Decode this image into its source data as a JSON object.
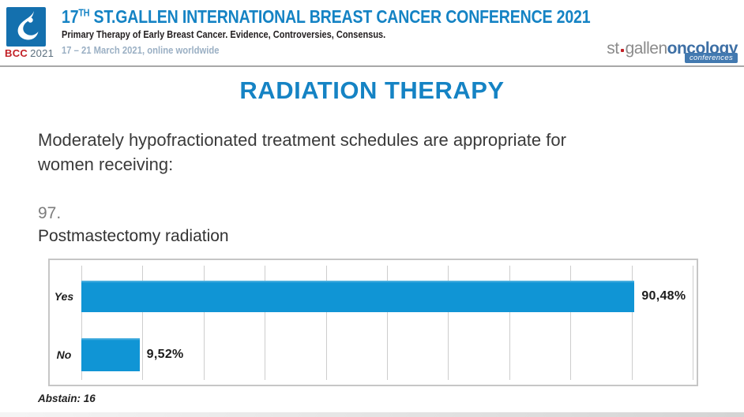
{
  "header": {
    "logo_caption": {
      "bcc": "BCC",
      "year": "2021"
    },
    "title_prefix": "17",
    "title_superscript": "TH",
    "title_rest": "ST.GALLEN INTERNATIONAL BREAST CANCER CONFERENCE 2021",
    "subtitle": "Primary Therapy of Early Breast Cancer. Evidence, Controversies, Consensus.",
    "dates": "17 – 21 March 2021, online worldwide",
    "brand": {
      "st_gallen": "st gallen",
      "oncology": "oncology",
      "badge": "conferences"
    }
  },
  "slide": {
    "title": "RADIATION THERAPY",
    "question_lines": [
      "Moderately hypofractionated treatment schedules are appropriate for",
      "women receiving:"
    ],
    "item_number": "97.",
    "item_text": "Postmastectomy radiation",
    "abstain_label": "Abstain: 16"
  },
  "chart_data": {
    "type": "bar",
    "orientation": "horizontal",
    "title": "Postmastectomy radiation",
    "categories": [
      "Yes",
      "No"
    ],
    "values": [
      90.48,
      9.52
    ],
    "value_labels": [
      "90,48%",
      "9,52%"
    ],
    "xlim": [
      0,
      100
    ],
    "gridline_interval": 10,
    "grid": true,
    "legend": false,
    "abstain_count": 16
  },
  "colors": {
    "accent_blue": "#1583c4",
    "bar_blue": "#1095d5",
    "logo_blue": "#1470ae",
    "bcc_red": "#c22026",
    "brand_gray": "#8b8b8b",
    "brand_blue": "#3d6fa5",
    "badge_blue": "#4279b0",
    "dates_gray": "#9bb0c4"
  }
}
